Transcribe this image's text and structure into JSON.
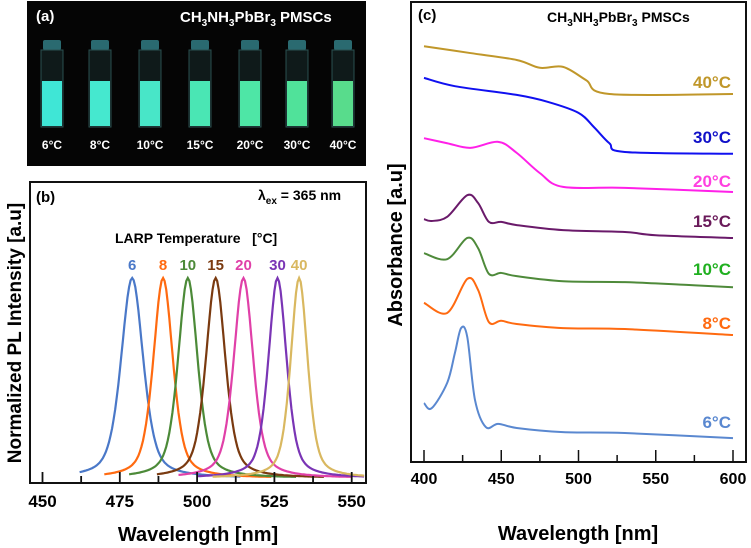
{
  "panel_a": {
    "label": "(a)",
    "title_main": "CH",
    "title_parts": [
      "CH",
      "3",
      "NH",
      "3",
      "PbBr",
      "3",
      " PMSCs"
    ],
    "vials": [
      {
        "label": "6°C",
        "color": "#3fe6d6"
      },
      {
        "label": "8°C",
        "color": "#45e8cf"
      },
      {
        "label": "10°C",
        "color": "#48e6c8"
      },
      {
        "label": "15°C",
        "color": "#4ae6b4"
      },
      {
        "label": "20°C",
        "color": "#4ee6a6"
      },
      {
        "label": "30°C",
        "color": "#50e29a"
      },
      {
        "label": "40°C",
        "color": "#58dc8c"
      }
    ]
  },
  "chart_data": [
    {
      "panel": "(b)",
      "type": "line",
      "title": "",
      "annotation": "λex = 365 nm",
      "annotation_parts": [
        "λ",
        "ex",
        " = 365 nm"
      ],
      "legend_title": "LARP Temperature   [°C]",
      "xlabel": "Wavelength [nm]",
      "ylabel": "Normalized PL Intensity [a.u]",
      "xlim": [
        447,
        554
      ],
      "ylim": [
        -0.025,
        1.48
      ],
      "xticks": [
        450,
        475,
        500,
        525,
        550
      ],
      "series": [
        {
          "name": "6",
          "color": "#4a78c8",
          "peak": 479,
          "fwhm": 8.5,
          "start": 462
        },
        {
          "name": "8",
          "color": "#ff6a10",
          "peak": 489,
          "fwhm": 7.5,
          "start": 470
        },
        {
          "name": "10",
          "color": "#4c8a38",
          "peak": 497,
          "fwhm": 7.5,
          "start": 478
        },
        {
          "name": "15",
          "color": "#7a3a10",
          "peak": 506,
          "fwhm": 7.5,
          "start": 487
        },
        {
          "name": "20",
          "color": "#e040a8",
          "peak": 515,
          "fwhm": 7.5,
          "start": 494
        },
        {
          "name": "30",
          "color": "#7a35b5",
          "peak": 526,
          "fwhm": 7,
          "start": 500
        },
        {
          "name": "40",
          "color": "#d9b860",
          "peak": 533,
          "fwhm": 6.5,
          "start": 505
        }
      ]
    },
    {
      "panel": "(c)",
      "type": "line",
      "title_parts": [
        "CH",
        "3",
        "NH",
        "3",
        "PbBr",
        "3",
        " PMSCs"
      ],
      "xlabel": "Wavelength [nm]",
      "ylabel": "Absorbance [a.u]",
      "xlim": [
        391,
        605
      ],
      "ylim": [
        0,
        10
      ],
      "xticks": [
        400,
        450,
        500,
        550,
        600
      ],
      "series": [
        {
          "name": "40°C",
          "color": "#c0972a",
          "points": [
            [
              400,
              9.04
            ],
            [
              430,
              8.89
            ],
            [
              460,
              8.74
            ],
            [
              475,
              8.57
            ],
            [
              490,
              8.59
            ],
            [
              505,
              8.3
            ],
            [
              520,
              8.0
            ],
            [
              600,
              8.0
            ]
          ]
        },
        {
          "name": "30°C",
          "color": "#1010f0",
          "points": [
            [
              400,
              8.35
            ],
            [
              420,
              8.17
            ],
            [
              460,
              7.98
            ],
            [
              480,
              7.83
            ],
            [
              500,
              7.59
            ],
            [
              510,
              7.28
            ],
            [
              520,
              6.93
            ],
            [
              530,
              6.74
            ],
            [
              600,
              6.7
            ]
          ]
        },
        {
          "name": "20°C",
          "color": "#ff20e8",
          "points": [
            [
              400,
              7.04
            ],
            [
              415,
              6.93
            ],
            [
              430,
              6.83
            ],
            [
              448,
              6.96
            ],
            [
              460,
              6.72
            ],
            [
              475,
              6.28
            ],
            [
              490,
              5.98
            ],
            [
              530,
              5.96
            ],
            [
              600,
              5.87
            ]
          ]
        },
        {
          "name": "15°C",
          "color": "#6a1a6a",
          "points": [
            [
              400,
              5.28
            ],
            [
              405,
              5.24
            ],
            [
              415,
              5.33
            ],
            [
              428,
              5.8
            ],
            [
              435,
              5.63
            ],
            [
              442,
              5.22
            ],
            [
              450,
              5.22
            ],
            [
              460,
              5.15
            ],
            [
              490,
              5.04
            ],
            [
              530,
              5.0
            ],
            [
              550,
              4.93
            ],
            [
              600,
              4.87
            ]
          ]
        },
        {
          "name": "10°C",
          "color": "#4e8a3a",
          "points": [
            [
              400,
              4.54
            ],
            [
              415,
              4.41
            ],
            [
              428,
              4.87
            ],
            [
              435,
              4.65
            ],
            [
              442,
              4.09
            ],
            [
              450,
              4.11
            ],
            [
              460,
              4.04
            ],
            [
              490,
              3.93
            ],
            [
              530,
              3.91
            ],
            [
              570,
              3.85
            ],
            [
              600,
              3.8
            ]
          ]
        },
        {
          "name": "8°C",
          "color": "#ff6a10",
          "points": [
            [
              400,
              3.46
            ],
            [
              415,
              3.24
            ],
            [
              428,
              3.98
            ],
            [
              435,
              3.74
            ],
            [
              442,
              3.04
            ],
            [
              450,
              3.07
            ],
            [
              460,
              3.0
            ],
            [
              490,
              2.91
            ],
            [
              530,
              2.89
            ],
            [
              600,
              2.76
            ]
          ]
        },
        {
          "name": "6°C",
          "color": "#5a88d0",
          "points": [
            [
              400,
              1.28
            ],
            [
              405,
              1.17
            ],
            [
              415,
              1.72
            ],
            [
              420,
              2.37
            ],
            [
              424,
              2.91
            ],
            [
              428,
              2.72
            ],
            [
              433,
              1.35
            ],
            [
              440,
              0.76
            ],
            [
              448,
              0.83
            ],
            [
              460,
              0.74
            ],
            [
              490,
              0.65
            ],
            [
              530,
              0.63
            ],
            [
              600,
              0.52
            ]
          ]
        }
      ],
      "label_colors": [
        "#c0972a",
        "#1010c8",
        "#ff40e0",
        "#6a1a5a",
        "#20b020",
        "#ff6a10",
        "#5a88d0"
      ]
    }
  ]
}
